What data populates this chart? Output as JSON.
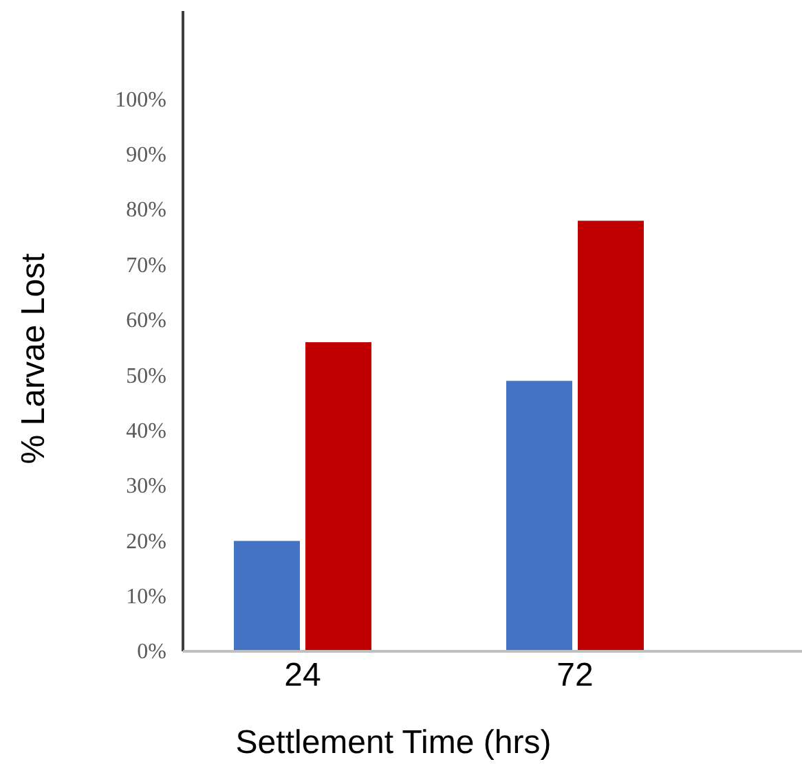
{
  "chart_data": {
    "type": "bar",
    "xlabel": "Settlement Time (hrs)",
    "ylabel": "% Larvae Lost",
    "categories": [
      "24",
      "72"
    ],
    "series": [
      {
        "color": "#4472c4",
        "values": [
          20,
          49
        ]
      },
      {
        "color": "#c00000",
        "values": [
          56,
          78
        ]
      }
    ],
    "ylim": [
      0,
      116
    ],
    "yticks": [
      {
        "value": 0,
        "label": "0%"
      },
      {
        "value": 10,
        "label": "10%"
      },
      {
        "value": 20,
        "label": "20%"
      },
      {
        "value": 30,
        "label": "30%"
      },
      {
        "value": 40,
        "label": "40%"
      },
      {
        "value": 50,
        "label": "50%"
      },
      {
        "value": 60,
        "label": "60%"
      },
      {
        "value": 70,
        "label": "70%"
      },
      {
        "value": 80,
        "label": "80%"
      },
      {
        "value": 90,
        "label": "90%"
      },
      {
        "value": 100,
        "label": "100%"
      }
    ],
    "grid": false
  }
}
